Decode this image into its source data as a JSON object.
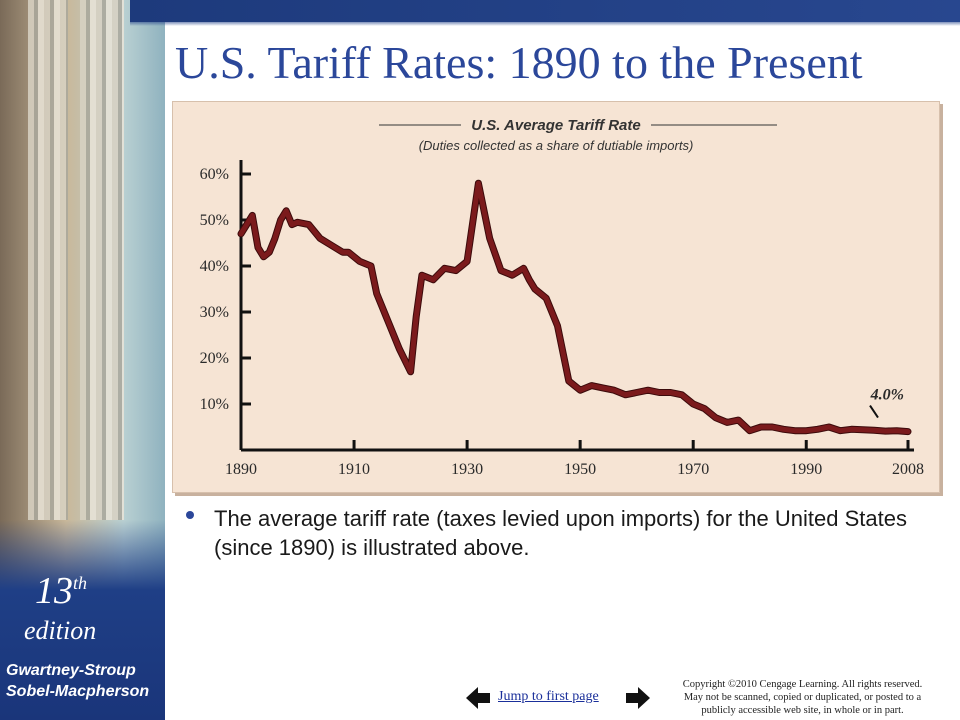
{
  "slide": {
    "title": "U.S. Tariff Rates: 1890 to the Present",
    "bullet": "The average tariff rate (taxes levied upon imports) for the United States (since 1890) is illustrated above."
  },
  "sidebar": {
    "edition_number": "13",
    "edition_suffix": "th",
    "edition_word": "edition",
    "authors_line1": "Gwartney-Stroup",
    "authors_line2": "Sobel-Macpherson"
  },
  "footer": {
    "jump_link": "Jump to first page",
    "copyright_line1": "Copyright ©2010 Cengage Learning. All rights reserved.",
    "copyright_line2": "May not be scanned, copied or duplicated, or posted to a",
    "copyright_line3": "publicly accessible web site, in whole or in part."
  },
  "icons": {
    "prev": "left-arrow-icon",
    "next": "right-arrow-icon"
  },
  "colors": {
    "title": "#2b479a",
    "line": "#7b1a1c",
    "panel": "#f6e4d4",
    "navy": "#1f3f86"
  },
  "chart_data": {
    "type": "line",
    "title": "U.S. Average Tariff Rate",
    "subtitle": "(Duties collected as a share of dutiable imports)",
    "xlabel": "",
    "ylabel": "",
    "xlim": [
      1890,
      2008
    ],
    "ylim": [
      0,
      60
    ],
    "x_ticks": [
      1890,
      1910,
      1930,
      1950,
      1970,
      1990,
      2008
    ],
    "y_ticks": [
      10,
      20,
      30,
      40,
      50,
      60
    ],
    "y_tick_labels": [
      "10%",
      "20%",
      "30%",
      "40%",
      "50%",
      "60%"
    ],
    "end_label": "4.0%",
    "grid": false,
    "series": [
      {
        "x": [
          1890,
          1891,
          1892,
          1893,
          1894,
          1895,
          1896,
          1897,
          1898,
          1899,
          1900,
          1902,
          1904,
          1906,
          1908,
          1909,
          1911,
          1913,
          1914,
          1916,
          1918,
          1920,
          1921,
          1922,
          1924,
          1926,
          1928,
          1930,
          1932,
          1934,
          1936,
          1938,
          1940,
          1941,
          1942,
          1944,
          1946,
          1948,
          1950,
          1952,
          1954,
          1956,
          1958,
          1960,
          1962,
          1964,
          1966,
          1968,
          1970,
          1972,
          1974,
          1976,
          1978,
          1980,
          1982,
          1984,
          1986,
          1988,
          1990,
          1992,
          1994,
          1996,
          1998,
          2000,
          2002,
          2004,
          2006,
          2008
        ],
        "values": [
          47,
          49,
          51,
          44,
          42,
          43,
          46,
          50,
          52,
          49,
          49.5,
          49,
          46,
          44.5,
          43,
          43,
          41,
          40,
          34,
          28,
          22,
          17,
          29,
          38,
          37,
          39.5,
          39,
          41,
          58,
          46,
          39,
          38,
          39.5,
          37,
          35,
          33,
          27,
          15,
          13,
          14,
          13.5,
          13,
          12,
          12.5,
          13,
          12.5,
          12.5,
          12,
          10,
          9,
          7,
          6,
          6.5,
          4.2,
          5,
          5,
          4.5,
          4.2,
          4.2,
          4.5,
          5,
          4.2,
          4.5,
          4.4,
          4.3,
          4.1,
          4.2,
          4.0
        ]
      }
    ]
  }
}
